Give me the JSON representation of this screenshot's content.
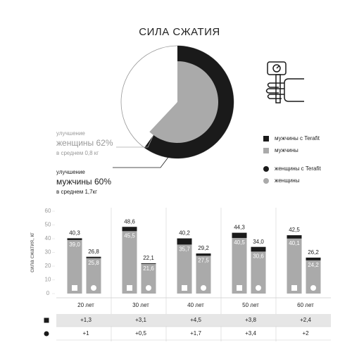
{
  "title": "СИЛА СЖАТИЯ",
  "chart_data": [
    {
      "type": "donut",
      "rings": [
        {
          "lead": "улучшение",
          "name": "мужчины",
          "value": 60,
          "value_label": "60%",
          "note": "в среднем 1,7кг",
          "color": "#1a1a1a"
        },
        {
          "lead": "улучшение",
          "name": "женщины",
          "value": 62,
          "value_label": "62%",
          "note": "в среднем 0,8 кг",
          "color": "#aaaaaa"
        }
      ]
    },
    {
      "type": "bar",
      "ylabel": "сила сжатия, кг",
      "categories": [
        "20 лет",
        "30 лет",
        "40 лет",
        "50 лет",
        "60 лет"
      ],
      "ylim": [
        0,
        60
      ],
      "yticks": [
        0,
        10,
        20,
        30,
        40,
        50,
        60
      ],
      "series": [
        {
          "name": "мужчины с Terafit",
          "color": "#1a1a1a",
          "marker": "square",
          "values": [
            40.3,
            48.6,
            40.2,
            44.3,
            42.5
          ],
          "value_labels": [
            "40,3",
            "48,6",
            "40,2",
            "44,3",
            "42,5"
          ]
        },
        {
          "name": "мужчины",
          "color": "#aaaaaa",
          "marker": "square",
          "values": [
            39.0,
            45.5,
            35.7,
            40.5,
            40.1
          ],
          "value_labels": [
            "39,0",
            "45,5",
            "35,7",
            "40,5",
            "40,1"
          ]
        },
        {
          "name": "женщины с Terafit",
          "color": "#1a1a1a",
          "marker": "circle",
          "values": [
            26.8,
            22.1,
            29.2,
            34.0,
            26.2
          ],
          "value_labels": [
            "26,8",
            "22,1",
            "29,2",
            "34,0",
            "26,2"
          ]
        },
        {
          "name": "женщины",
          "color": "#aaaaaa",
          "marker": "circle",
          "values": [
            25.8,
            21.6,
            27.5,
            30.6,
            24.2
          ],
          "value_labels": [
            "25,8",
            "21,6",
            "27,5",
            "30,6",
            "24,2"
          ]
        }
      ],
      "table": {
        "rows": [
          {
            "marker": "square",
            "cells": [
              "+1,3",
              "+3,1",
              "+4,5",
              "+3,8",
              "+2,4"
            ]
          },
          {
            "marker": "circle",
            "cells": [
              "+1",
              "+0,5",
              "+1,7",
              "+3,4",
              "+2"
            ]
          }
        ]
      }
    }
  ]
}
